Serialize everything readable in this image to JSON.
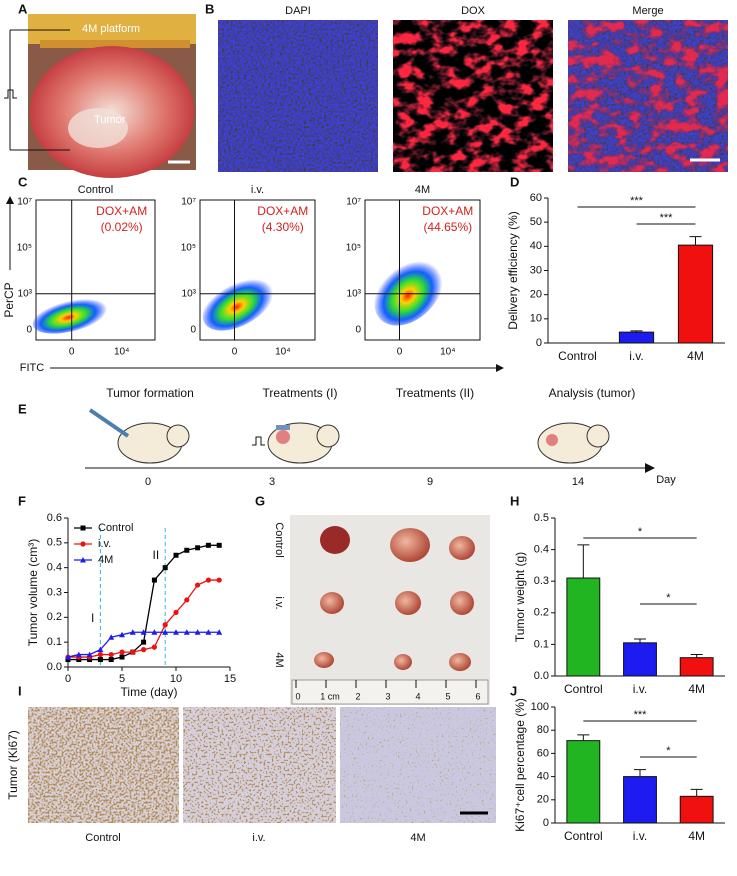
{
  "panel_labels": [
    "A",
    "B",
    "C",
    "D",
    "E",
    "F",
    "G",
    "H",
    "I",
    "J"
  ],
  "photo_a": {
    "platform": "4M platform",
    "tumor": "Tumor"
  },
  "microscopy": {
    "channels": [
      "DAPI",
      "DOX",
      "Merge"
    ]
  },
  "flow": {
    "y_label": "PerCP",
    "x_label": "FITC",
    "yticks": [
      "10⁷",
      "10⁵",
      "10³",
      "0"
    ],
    "xticks": [
      "0",
      "10⁴"
    ],
    "plots": [
      {
        "title": "Control",
        "gate": "DOX+AM",
        "percent": "(0.02%)"
      },
      {
        "title": "i.v.",
        "gate": "DOX+AM",
        "percent": "(4.30%)"
      },
      {
        "title": "4M",
        "gate": "DOX+AM",
        "percent": "(44.65%)"
      }
    ]
  },
  "timeline": {
    "events": [
      "Tumor formation",
      "Treatments (I)",
      "Treatments (II)",
      "Analysis (tumor)"
    ],
    "days": [
      "0",
      "3",
      "9",
      "14"
    ],
    "axis_label": "Day"
  },
  "photo_g": {
    "rows": [
      "Control",
      "i.v.",
      "4M"
    ],
    "ruler": [
      "0",
      "1 cm",
      "2",
      "3",
      "4",
      "5",
      "6"
    ]
  },
  "ihc": {
    "y_label": "Tumor (Ki67)",
    "columns": [
      "Control",
      "i.v.",
      "4M"
    ]
  },
  "chart_data": [
    {
      "type": "bar",
      "y_label": "Delivery efficiency (%)",
      "categories": [
        "Control",
        "i.v.",
        "4M"
      ],
      "values": [
        0,
        4.5,
        40.5
      ],
      "errors": [
        0,
        0.5,
        3.5
      ],
      "colors": [
        "#22b522",
        "#1c1cf0",
        "#f01010"
      ],
      "ylim": [
        0,
        60
      ],
      "yticks": [
        0,
        10,
        20,
        30,
        40,
        50,
        60
      ],
      "annotations": [
        "***",
        "***"
      ]
    },
    {
      "type": "line",
      "y_label": "Tumor volume (cm³)",
      "x_label": "Time (day)",
      "x": [
        0,
        1,
        2,
        3,
        4,
        5,
        6,
        7,
        8,
        9,
        10,
        11,
        12,
        13,
        14
      ],
      "series": [
        {
          "name": "Control",
          "color": "#000000",
          "marker": "square",
          "values": [
            0.03,
            0.03,
            0.03,
            0.03,
            0.03,
            0.04,
            0.06,
            0.1,
            0.35,
            0.4,
            0.45,
            0.47,
            0.48,
            0.49,
            0.49
          ]
        },
        {
          "name": "i.v.",
          "color": "#f01010",
          "marker": "circle",
          "values": [
            0.04,
            0.04,
            0.04,
            0.05,
            0.05,
            0.06,
            0.06,
            0.07,
            0.08,
            0.17,
            0.22,
            0.27,
            0.33,
            0.35,
            0.35
          ]
        },
        {
          "name": "4M",
          "color": "#1c1cf0",
          "marker": "triangle",
          "values": [
            0.04,
            0.05,
            0.05,
            0.07,
            0.12,
            0.13,
            0.14,
            0.14,
            0.14,
            0.14,
            0.14,
            0.14,
            0.14,
            0.14,
            0.14
          ]
        }
      ],
      "xlim": [
        0,
        15
      ],
      "xticks": [
        0,
        5,
        10,
        15
      ],
      "ylim": [
        0,
        0.6
      ],
      "yticks": [
        {
          "value": 0,
          "label": "0.0"
        },
        0.1,
        0.2,
        0.3,
        0.4,
        0.5,
        0.6
      ],
      "markers": [
        {
          "label": "I",
          "x": 3
        },
        {
          "label": "II",
          "x": 9
        }
      ],
      "legend": "upper-left"
    },
    {
      "type": "bar",
      "y_label": "Tumor weight (g)",
      "categories": [
        "Control",
        "i.v.",
        "4M"
      ],
      "values": [
        0.31,
        0.105,
        0.058
      ],
      "errors": [
        0.105,
        0.012,
        0.01
      ],
      "colors": [
        "#22b522",
        "#1c1cf0",
        "#f01010"
      ],
      "ylim": [
        0,
        0.5
      ],
      "yticks": [
        {
          "value": 0,
          "label": "0.0"
        },
        0.1,
        0.2,
        0.3,
        0.4,
        0.5
      ],
      "annotations": [
        "*",
        "*"
      ]
    },
    {
      "type": "bar",
      "y_label": "Ki67⁺cell percentage (%)",
      "categories": [
        "Control",
        "i.v.",
        "4M"
      ],
      "values": [
        71,
        40,
        23
      ],
      "errors": [
        5,
        6,
        6
      ],
      "colors": [
        "#22b522",
        "#1c1cf0",
        "#f01010"
      ],
      "ylim": [
        0,
        100
      ],
      "yticks": [
        0,
        20,
        40,
        60,
        80,
        100
      ],
      "annotations": [
        "***",
        "*"
      ]
    }
  ]
}
